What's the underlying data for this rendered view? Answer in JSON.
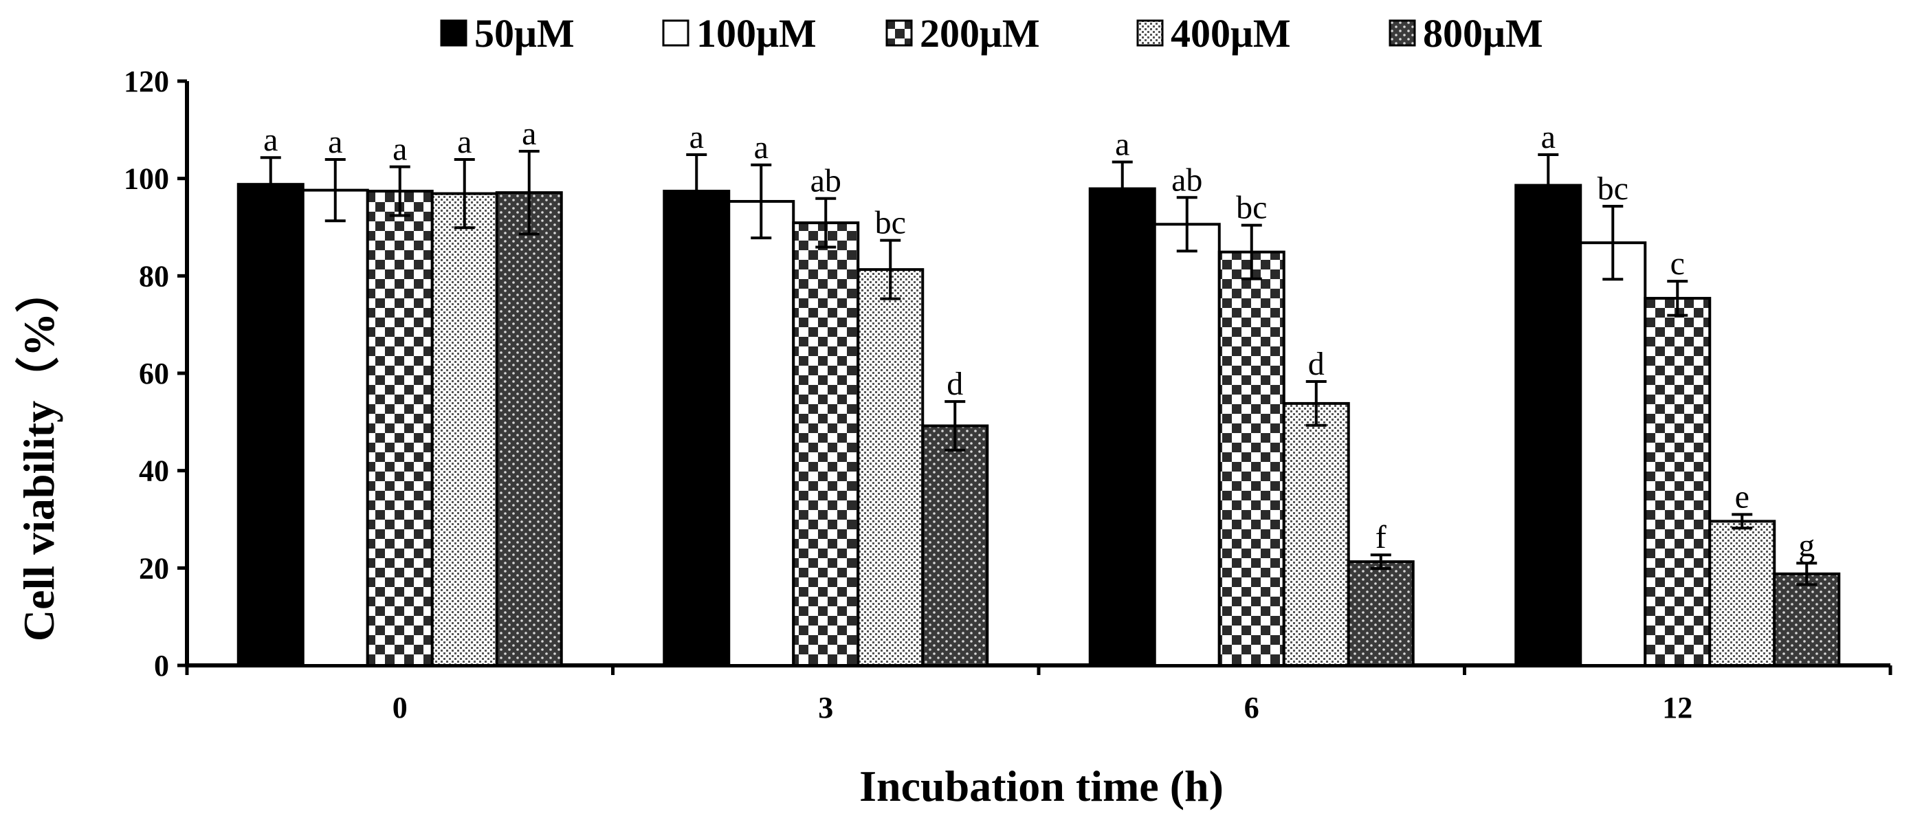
{
  "chart_data": {
    "type": "bar",
    "title": "",
    "xlabel": "Incubation time (h)",
    "ylabel": "Cell viability（%）",
    "ylim": [
      0,
      120
    ],
    "yticks": [
      "0",
      "20",
      "40",
      "60",
      "80",
      "100",
      "120"
    ],
    "categories": [
      "0",
      "3",
      "6",
      "12"
    ],
    "legend_position": "top",
    "series": [
      {
        "name": "50μM",
        "pattern": "solid-black",
        "values": [
          98.8,
          97.4,
          97.9,
          98.6
        ],
        "errors": [
          5.5,
          7.5,
          5.5,
          6.3
        ],
        "labels": [
          "a",
          "a",
          "a",
          "a"
        ]
      },
      {
        "name": "100μM",
        "pattern": "white",
        "values": [
          97.6,
          95.3,
          90.6,
          86.8
        ],
        "errors": [
          6.3,
          7.5,
          5.5,
          7.5
        ],
        "labels": [
          "a",
          "a",
          "ab",
          "bc"
        ]
      },
      {
        "name": "200μM",
        "pattern": "checker",
        "values": [
          97.4,
          90.9,
          84.9,
          75.4
        ],
        "errors": [
          5.0,
          5.0,
          5.5,
          3.5
        ],
        "labels": [
          "a",
          "ab",
          "bc",
          "c"
        ]
      },
      {
        "name": "400μM",
        "pattern": "fine-dots",
        "values": [
          96.9,
          81.3,
          53.8,
          29.6
        ],
        "errors": [
          7.0,
          6.0,
          4.5,
          1.4
        ],
        "labels": [
          "a",
          "bc",
          "d",
          "e"
        ]
      },
      {
        "name": "800μM",
        "pattern": "dark-dots",
        "values": [
          97.1,
          49.2,
          21.3,
          18.8
        ],
        "errors": [
          8.5,
          5.0,
          1.4,
          2.2
        ],
        "labels": [
          "a",
          "d",
          "f",
          "g"
        ]
      }
    ]
  }
}
